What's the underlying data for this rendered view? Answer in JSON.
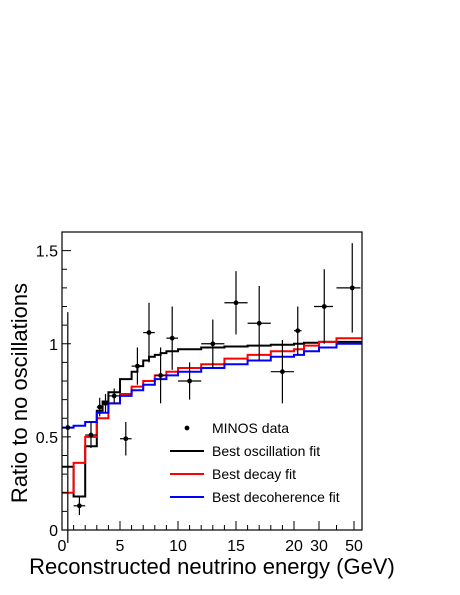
{
  "chart_data": {
    "type": "line",
    "title": "",
    "xlabel": "Reconstructed neutrino energy (GeV)",
    "ylabel": "Ratio to no oscillations",
    "x_axis_note": "piecewise scale: linear 0-20 GeV, compressed 20-60 GeV",
    "xlim": [
      0,
      60
    ],
    "ylim": [
      0,
      1.6
    ],
    "x_ticks": [
      "0",
      "5",
      "10",
      "15",
      "20",
      "30",
      "50"
    ],
    "x_tick_values": [
      0,
      5,
      10,
      15,
      20,
      30,
      50
    ],
    "y_ticks": [
      "0",
      "0.5",
      "1",
      "1.5"
    ],
    "y_tick_values": [
      0,
      0.5,
      1,
      1.5
    ],
    "legend_position": "bottom-center",
    "data_points": {
      "name": "MINOS data",
      "color": "#000000",
      "points": [
        {
          "x": 0.5,
          "y": 0.55,
          "xerr": 0.5,
          "yerr": 0.62
        },
        {
          "x": 1.5,
          "y": 0.13,
          "xerr": 0.5,
          "yerr": 0.05
        },
        {
          "x": 2.5,
          "y": 0.51,
          "xerr": 0.5,
          "yerr": 0.07
        },
        {
          "x": 3.25,
          "y": 0.66,
          "xerr": 0.25,
          "yerr": 0.05
        },
        {
          "x": 3.75,
          "y": 0.68,
          "xerr": 0.25,
          "yerr": 0.05
        },
        {
          "x": 4.5,
          "y": 0.72,
          "xerr": 0.5,
          "yerr": 0.04
        },
        {
          "x": 5.5,
          "y": 0.49,
          "xerr": 0.5,
          "yerr": 0.09
        },
        {
          "x": 6.5,
          "y": 0.88,
          "xerr": 0.5,
          "yerr": 0.1
        },
        {
          "x": 7.5,
          "y": 1.06,
          "xerr": 0.5,
          "yerr": 0.16
        },
        {
          "x": 8.5,
          "y": 0.83,
          "xerr": 0.5,
          "yerr": 0.15
        },
        {
          "x": 9.5,
          "y": 1.03,
          "xerr": 0.5,
          "yerr": 0.17
        },
        {
          "x": 11,
          "y": 0.8,
          "xerr": 1,
          "yerr": 0.1
        },
        {
          "x": 13,
          "y": 1.0,
          "xerr": 1,
          "yerr": 0.13
        },
        {
          "x": 15,
          "y": 1.22,
          "xerr": 1,
          "yerr": 0.17
        },
        {
          "x": 17,
          "y": 1.11,
          "xerr": 1,
          "yerr": 0.2
        },
        {
          "x": 19,
          "y": 0.85,
          "xerr": 1,
          "yerr": 0.17
        },
        {
          "x": 21.5,
          "y": 1.07,
          "xerr": 1.5,
          "yerr": 0.13
        },
        {
          "x": 33,
          "y": 1.2,
          "xerr": 5,
          "yerr": 0.2
        },
        {
          "x": 49,
          "y": 1.3,
          "xerr": 9,
          "yerr": 0.24
        }
      ]
    },
    "series": [
      {
        "name": "Best oscillation fit",
        "color": "#000000",
        "edges": [
          0,
          1,
          2,
          3,
          3.5,
          4,
          5,
          6,
          6.5,
          7,
          7.5,
          8,
          8.5,
          9,
          10,
          12,
          14,
          16,
          18,
          20,
          24,
          30,
          40,
          60
        ],
        "values": [
          0.34,
          0.18,
          0.45,
          0.64,
          0.69,
          0.74,
          0.81,
          0.85,
          0.88,
          0.91,
          0.93,
          0.94,
          0.95,
          0.96,
          0.97,
          0.98,
          0.985,
          0.99,
          0.995,
          1.0,
          1.005,
          1.01,
          1.01
        ]
      },
      {
        "name": "Best decay fit",
        "color": "#ff0000",
        "edges": [
          0,
          1,
          2,
          3,
          4,
          5,
          6,
          7,
          8,
          9,
          10,
          12,
          14,
          16,
          18,
          20,
          24,
          30,
          40,
          60
        ],
        "values": [
          0.2,
          0.36,
          0.5,
          0.6,
          0.68,
          0.73,
          0.77,
          0.8,
          0.83,
          0.85,
          0.87,
          0.89,
          0.92,
          0.94,
          0.96,
          0.97,
          0.99,
          1.01,
          1.03
        ]
      },
      {
        "name": "Best decoherence fit",
        "color": "#0000ff",
        "edges": [
          0,
          1,
          2,
          3,
          4,
          5,
          6,
          7,
          8,
          9,
          10,
          12,
          14,
          16,
          18,
          20,
          24,
          30,
          40,
          60
        ],
        "values": [
          0.55,
          0.56,
          0.58,
          0.63,
          0.68,
          0.72,
          0.75,
          0.78,
          0.81,
          0.83,
          0.85,
          0.87,
          0.89,
          0.91,
          0.93,
          0.94,
          0.96,
          0.98,
          1.0
        ]
      }
    ]
  }
}
